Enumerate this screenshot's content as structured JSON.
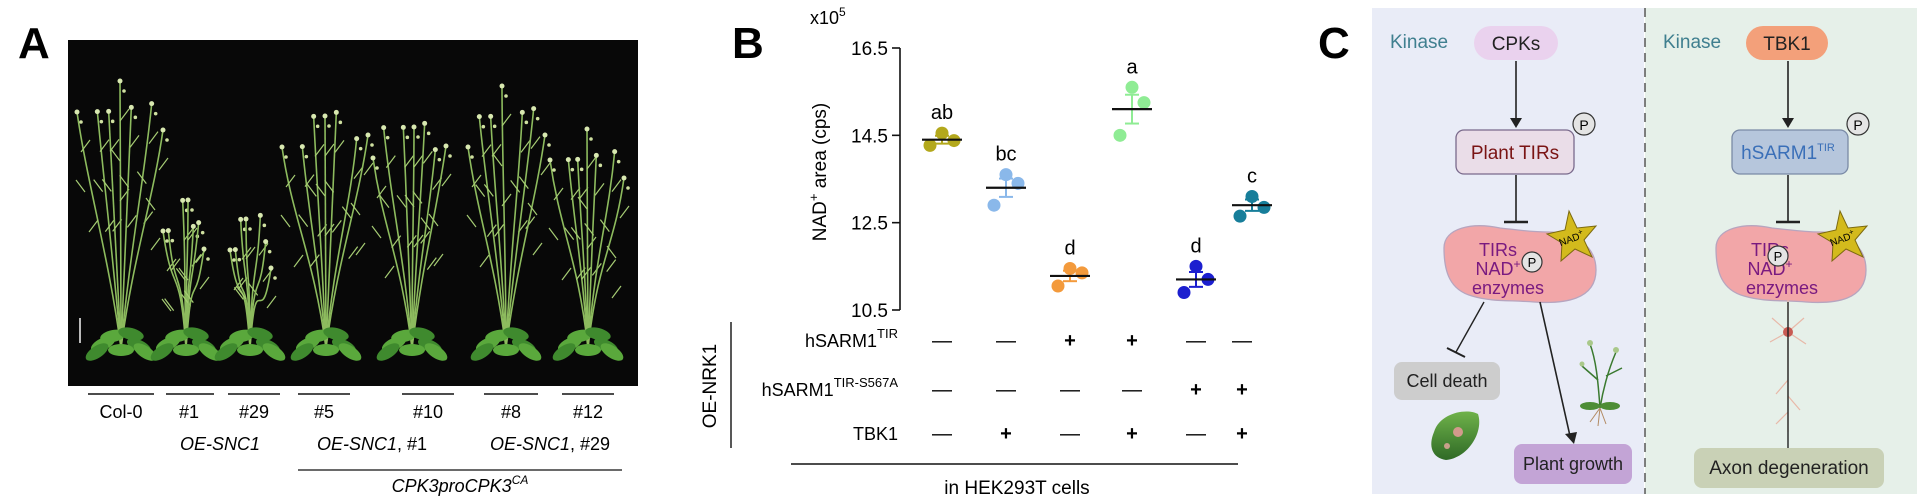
{
  "figure": {
    "panel_a": {
      "letter": "A",
      "genotypes": [
        "Col-0",
        "#1",
        "#29",
        "#5",
        "#10",
        "#8",
        "#12"
      ],
      "group_oe_snc1": "OE-SNC1",
      "group_oe_snc1_1_name": "OE-SNC1",
      "group_oe_snc1_1_suffix": ", #1",
      "group_oe_snc1_29_name": "OE-SNC1",
      "group_oe_snc1_29_suffix": ", #29",
      "construct_main": "CPK3proCPK3",
      "construct_sup": "CA"
    },
    "panel_b": {
      "letter": "B",
      "exponent_base": "x10",
      "exponent_power": "5",
      "ylabel_pre": "NAD",
      "ylabel_sup": "+",
      "ylabel_post": " area (cps)",
      "rows": [
        {
          "label": "hSARM1",
          "sup": "TIR",
          "signs": [
            "—",
            "—",
            "+",
            "+",
            "—",
            "—"
          ]
        },
        {
          "label": "hSARM1",
          "sup": "TIR-S567A",
          "signs": [
            "—",
            "—",
            "—",
            "—",
            "+",
            "+"
          ]
        },
        {
          "label": "TBK1",
          "sup": "",
          "signs": [
            "—",
            "+",
            "—",
            "+",
            "—",
            "+"
          ]
        }
      ],
      "side_label": "OE-NRK1",
      "footer": "in HEK293T cells"
    },
    "panel_c": {
      "letter": "C",
      "left": {
        "kinase_label": "Kinase",
        "kinase": "CPKs",
        "tir_box": "Plant TIRs",
        "p": "P",
        "nad_star": "NAD",
        "nad_star_sup": "+",
        "enzyme_line1": "TIRs",
        "enzyme_line2_pre": "NAD",
        "enzyme_line2_sup": "+",
        "enzyme_line3": "enzymes",
        "outcome_1": "Cell death",
        "outcome_2": "Plant growth"
      },
      "right": {
        "kinase_label": "Kinase",
        "kinase": "TBK1",
        "tir_box_main": "hSARM1",
        "tir_box_sup": "TIR",
        "p": "P",
        "nad_star": "NAD",
        "nad_star_sup": "+",
        "enzyme_line1": "TIRs",
        "enzyme_line2_pre": "NAD",
        "enzyme_line2_sup": "+",
        "enzyme_line3": "enzymes",
        "outcome": "Axon degeneration"
      }
    }
  },
  "chart_data": {
    "type": "scatter",
    "title": "",
    "ylabel": "NAD+ area (cps)",
    "y_multiplier": "x10^5",
    "ylim": [
      10.5,
      16.5
    ],
    "yticks": [
      10.5,
      12.5,
      14.5,
      16.5
    ],
    "ytick_labels": [
      "10.5",
      "12.5",
      "14.5",
      "16.5"
    ],
    "grid": false,
    "groups": [
      {
        "letter": "ab",
        "color": "#b3a81c",
        "points": [
          14.27,
          14.38,
          14.55
        ],
        "mean": 14.4,
        "sem": 0.09
      },
      {
        "letter": "bc",
        "color": "#8ab8ea",
        "points": [
          12.9,
          13.4,
          13.6
        ],
        "mean": 13.3,
        "sem": 0.21
      },
      {
        "letter": "d",
        "color": "#f39a3c",
        "points": [
          11.05,
          11.35,
          11.45
        ],
        "mean": 11.28,
        "sem": 0.12
      },
      {
        "letter": "a",
        "color": "#8fec94",
        "points": [
          14.5,
          15.25,
          15.6
        ],
        "mean": 15.1,
        "sem": 0.33
      },
      {
        "letter": "d",
        "color": "#1c1fcf",
        "points": [
          10.9,
          11.2,
          11.5
        ],
        "mean": 11.2,
        "sem": 0.17
      },
      {
        "letter": "c",
        "color": "#177e9a",
        "points": [
          12.65,
          12.85,
          13.1
        ],
        "mean": 12.9,
        "sem": 0.13
      }
    ]
  }
}
